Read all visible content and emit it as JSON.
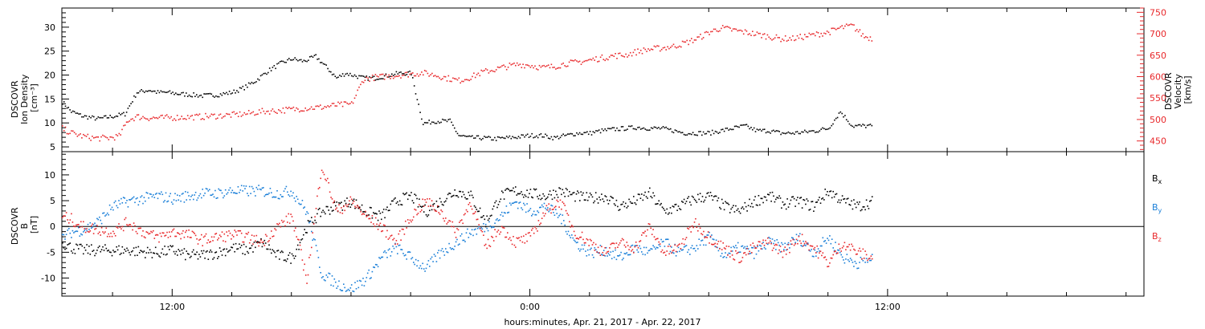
{
  "chart_data": {
    "type": "scatter",
    "xlabel": "hours:minutes, Apr. 21, 2017 - Apr. 22, 2017",
    "x_range_hours": [
      8.3,
      44.6
    ],
    "x_ticks": [
      {
        "hour": 12,
        "label": "12:00"
      },
      {
        "hour": 24,
        "label": "0:00"
      },
      {
        "hour": 36,
        "label": "12:00"
      }
    ],
    "top_panel": {
      "ylabel_left": [
        "DSCOVR",
        "Ion Density",
        "[cm⁻³]"
      ],
      "ylabel_right": [
        "DSCOVR",
        "Velocity",
        "[km/s]"
      ],
      "left_ylim": [
        4,
        34
      ],
      "left_ticks": [
        5,
        10,
        15,
        20,
        25,
        30
      ],
      "right_ylim": [
        425,
        760
      ],
      "right_ticks": [
        450,
        500,
        550,
        600,
        650,
        700,
        750
      ],
      "series": [
        {
          "name": "density",
          "axis": "left",
          "color": "#000000",
          "x": [
            8.3,
            8.6,
            9.0,
            9.5,
            10.0,
            10.4,
            10.8,
            11.2,
            11.5,
            11.8,
            12.2,
            12.6,
            13.0,
            13.5,
            14.0,
            14.4,
            14.8,
            15.2,
            15.6,
            16.0,
            16.4,
            16.8,
            17.2,
            17.5,
            17.8,
            18.1,
            18.4,
            18.8,
            19.2,
            19.6,
            20.0,
            20.4,
            20.8,
            21.0,
            21.3,
            21.6,
            22.0,
            22.4,
            22.8,
            23.2,
            23.6,
            24.0,
            24.4,
            24.8,
            25.2,
            25.6,
            26.0,
            26.4,
            26.8,
            27.2,
            27.6,
            28.0,
            28.4,
            28.8,
            29.2,
            29.6,
            30.0,
            30.4,
            30.8,
            31.2,
            31.6,
            32.0,
            32.4,
            32.8,
            33.2,
            33.6,
            34.0,
            34.4,
            34.8,
            35.2,
            35.5
          ],
          "y": [
            14.5,
            12.5,
            11.5,
            11.0,
            11.5,
            12.0,
            16.5,
            17.0,
            16.5,
            16.5,
            16.2,
            16.0,
            15.8,
            16.0,
            16.5,
            17.5,
            19.0,
            21.0,
            22.5,
            23.5,
            23.0,
            24.0,
            21.5,
            19.5,
            20.5,
            20.0,
            19.5,
            19.5,
            20.0,
            20.5,
            20.5,
            10.0,
            10.5,
            10.5,
            10.5,
            7.5,
            7.0,
            7.0,
            6.8,
            7.0,
            7.2,
            7.5,
            7.5,
            7.0,
            7.5,
            8.0,
            8.0,
            8.5,
            8.8,
            9.0,
            9.2,
            9.0,
            9.0,
            8.5,
            8.0,
            8.0,
            8.0,
            8.5,
            9.0,
            9.5,
            8.5,
            8.5,
            8.0,
            8.0,
            8.2,
            8.5,
            9.0,
            12.5,
            9.5,
            9.5,
            9.5
          ]
        },
        {
          "name": "velocity",
          "axis": "right",
          "color": "#e8282b",
          "x": [
            8.3,
            8.6,
            9.0,
            9.4,
            9.8,
            10.2,
            10.5,
            10.8,
            11.2,
            11.6,
            12.0,
            12.5,
            13.0,
            13.5,
            14.0,
            14.5,
            15.0,
            15.5,
            16.0,
            16.5,
            17.0,
            17.5,
            18.0,
            18.4,
            18.8,
            19.2,
            19.6,
            20.0,
            20.4,
            20.8,
            21.2,
            21.6,
            22.0,
            22.4,
            22.8,
            23.2,
            23.6,
            24.0,
            24.4,
            24.8,
            25.2,
            25.6,
            26.0,
            26.4,
            26.8,
            27.2,
            27.6,
            28.0,
            28.4,
            28.8,
            29.2,
            29.6,
            30.0,
            30.4,
            30.8,
            31.2,
            31.6,
            32.0,
            32.4,
            32.8,
            33.2,
            33.6,
            34.0,
            34.4,
            34.8,
            35.2,
            35.5
          ],
          "y": [
            480,
            470,
            462,
            458,
            458,
            462,
            500,
            508,
            505,
            505,
            506,
            507,
            508,
            510,
            512,
            515,
            520,
            522,
            525,
            528,
            530,
            535,
            537,
            595,
            600,
            602,
            605,
            608,
            610,
            605,
            598,
            592,
            600,
            612,
            618,
            625,
            630,
            628,
            622,
            625,
            632,
            635,
            640,
            645,
            650,
            652,
            660,
            665,
            668,
            672,
            680,
            690,
            705,
            715,
            710,
            705,
            700,
            695,
            690,
            690,
            695,
            700,
            705,
            715,
            720,
            695,
            690
          ]
        }
      ]
    },
    "bottom_panel": {
      "ylabel_left": [
        "DSCOVR",
        "B",
        "[nT]"
      ],
      "ylim": [
        -13.5,
        14.5
      ],
      "ticks": [
        -10,
        -5,
        0,
        5,
        10
      ],
      "zero_line": true,
      "series": [
        {
          "name": "Bx",
          "label_main": "B",
          "label_sub": "x",
          "color": "#000000",
          "x": [
            8.3,
            8.6,
            9.0,
            9.5,
            10.0,
            10.5,
            11.0,
            11.5,
            12.0,
            12.5,
            13.0,
            13.5,
            14.0,
            14.5,
            15.0,
            15.5,
            16.0,
            16.5,
            17.0,
            17.5,
            18.0,
            18.5,
            19.0,
            19.5,
            20.0,
            20.5,
            21.0,
            21.5,
            22.0,
            22.5,
            23.0,
            23.5,
            24.0,
            24.5,
            25.0,
            25.5,
            26.0,
            26.5,
            27.0,
            27.5,
            28.0,
            28.5,
            29.0,
            29.5,
            30.0,
            30.5,
            31.0,
            31.5,
            32.0,
            32.5,
            33.0,
            33.5,
            34.0,
            34.5,
            35.0,
            35.5
          ],
          "y": [
            -3.0,
            -4.0,
            -4.5,
            -4.5,
            -4.5,
            -4.5,
            -4.8,
            -5.0,
            -4.5,
            -5.5,
            -5.5,
            -5.0,
            -4.0,
            -4.5,
            -3.0,
            -5.5,
            -6.0,
            0.0,
            3.0,
            4.0,
            5.0,
            3.0,
            2.0,
            5.0,
            6.0,
            3.0,
            5.0,
            7.0,
            6.0,
            1.0,
            6.0,
            7.0,
            6.5,
            6.0,
            7.0,
            6.0,
            5.5,
            6.0,
            4.0,
            5.0,
            6.5,
            3.0,
            4.0,
            5.5,
            6.0,
            4.0,
            3.0,
            5.0,
            6.0,
            4.5,
            5.0,
            4.0,
            7.0,
            5.0,
            4.0,
            5.0
          ]
        },
        {
          "name": "By",
          "label_main": "B",
          "label_sub": "y",
          "color": "#1a7fd8",
          "x": [
            8.3,
            8.6,
            9.0,
            9.5,
            10.0,
            10.5,
            11.0,
            11.5,
            12.0,
            12.5,
            13.0,
            13.5,
            14.0,
            14.5,
            15.0,
            15.5,
            16.0,
            16.5,
            17.0,
            17.5,
            18.0,
            18.5,
            19.0,
            19.5,
            20.0,
            20.5,
            21.0,
            21.5,
            22.0,
            22.5,
            23.0,
            23.5,
            24.0,
            24.5,
            25.0,
            25.5,
            26.0,
            26.5,
            27.0,
            27.5,
            28.0,
            28.5,
            29.0,
            29.5,
            30.0,
            30.5,
            31.0,
            31.5,
            32.0,
            32.5,
            33.0,
            33.5,
            34.0,
            34.5,
            35.0,
            35.5
          ],
          "y": [
            -2.0,
            -1.0,
            -0.5,
            1.0,
            4.0,
            5.0,
            5.5,
            6.0,
            5.5,
            6.0,
            6.5,
            6.5,
            7.0,
            7.0,
            7.0,
            6.5,
            7.0,
            3.0,
            -9.0,
            -11.0,
            -12.0,
            -10.0,
            -6.0,
            -4.0,
            -6.0,
            -8.0,
            -5.0,
            -3.0,
            -1.0,
            0.0,
            2.0,
            5.0,
            3.0,
            4.0,
            2.0,
            -3.0,
            -5.0,
            -4.5,
            -6.0,
            -4.0,
            -5.0,
            -3.0,
            -5.0,
            -4.0,
            -2.0,
            -5.5,
            -4.0,
            -5.0,
            -3.0,
            -4.0,
            -2.0,
            -5.0,
            -2.0,
            -6.0,
            -7.0,
            -6.0
          ]
        },
        {
          "name": "Bz",
          "label_main": "B",
          "label_sub": "z",
          "color": "#e8282b",
          "x": [
            8.3,
            8.6,
            9.0,
            9.5,
            10.0,
            10.5,
            11.0,
            11.5,
            12.0,
            12.5,
            13.0,
            13.5,
            14.0,
            14.5,
            15.0,
            15.5,
            16.0,
            16.5,
            17.0,
            17.5,
            18.0,
            18.5,
            19.0,
            19.5,
            20.0,
            20.5,
            21.0,
            21.5,
            22.0,
            22.5,
            23.0,
            23.5,
            24.0,
            24.5,
            25.0,
            25.5,
            26.0,
            26.5,
            27.0,
            27.5,
            28.0,
            28.5,
            29.0,
            29.5,
            30.0,
            30.5,
            31.0,
            31.5,
            32.0,
            32.5,
            33.0,
            33.5,
            34.0,
            34.5,
            35.0,
            35.5
          ],
          "y": [
            2.0,
            1.5,
            0.0,
            -0.5,
            -1.0,
            1.0,
            -1.0,
            -2.0,
            -1.0,
            -1.5,
            -2.5,
            -2.0,
            -1.5,
            -2.0,
            -3.0,
            0.0,
            2.0,
            -10.0,
            12.0,
            3.0,
            5.0,
            2.0,
            0.0,
            -3.0,
            2.0,
            5.0,
            3.0,
            -1.0,
            5.0,
            -4.0,
            0.0,
            -3.0,
            -2.0,
            3.0,
            5.0,
            -1.0,
            -3.0,
            -5.0,
            -3.0,
            -4.0,
            0.0,
            -5.0,
            -4.0,
            1.0,
            -2.0,
            -4.0,
            -6.0,
            -4.0,
            -3.0,
            -5.0,
            -2.0,
            -4.0,
            -7.0,
            -3.0,
            -5.0,
            -6.0
          ]
        }
      ]
    }
  }
}
